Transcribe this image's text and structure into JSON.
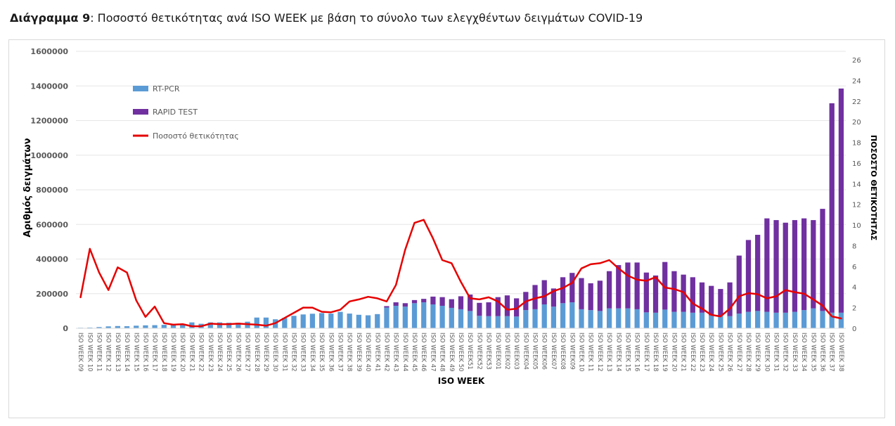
{
  "caption": {
    "label": "Διάγραμμα 9",
    "text": ": Ποσοστό θετικότητας ανά ISO WEEK με βάση το σύνολο των ελεγχθέντων δειγμάτων COVID-19"
  },
  "colors": {
    "rtpcr": "#5b9bd5",
    "rapid": "#7030a0",
    "line": "#e60000",
    "axis_text": "#595959",
    "grid": "#e6e6e6"
  },
  "chart_data": {
    "type": "bar",
    "xlabel": "ISO WEEK",
    "ylabel": "Αριθμός δειγμάτων",
    "y2label": "ΠΟΣΟΣΤΟ ΘΕΤΙΚΟΤΗΤΑΣ",
    "ylim": [
      0,
      1600000
    ],
    "y_ticks": [
      "0",
      "200000",
      "400000",
      "600000",
      "800000",
      "1000000",
      "1200000",
      "1400000",
      "1600000"
    ],
    "y2lim": [
      0,
      26
    ],
    "y2_ticks": [
      "0",
      "2",
      "4",
      "6",
      "8",
      "10",
      "12",
      "14",
      "16",
      "18",
      "20",
      "22",
      "24",
      "26"
    ],
    "legend_position": "top-left",
    "categories": [
      "ISO WEEK 09",
      "ISO WEEK 10",
      "ISO WEEK 11",
      "ISO WEEK 12",
      "ISO WEEK 13",
      "ISO WEEK 14",
      "ISO WEEK 15",
      "ISO WEEK 16",
      "ISO WEEK 17",
      "ISO WEEK 18",
      "ISO WEEK 19",
      "ISO WEEK 20",
      "ISO WEEK 21",
      "ISO WEEK 22",
      "ISO WEEK 23",
      "ISO WEEK 24",
      "ISO WEEK 25",
      "ISO WEEK 26",
      "ISO WEEK 27",
      "ISO WEEK 28",
      "ISO WEEK 29",
      "ISO WEEK 30",
      "ISO WEEK 31",
      "ISO WEEK 32",
      "ISO WEEK 33",
      "ISO WEEK 34",
      "ISO WEEK 35",
      "ISO WEEK 36",
      "ISO WEEK 37",
      "ISO WEEK 38",
      "ISO WEEK 39",
      "ISO WEEK 40",
      "ISO WEEK 41",
      "ISO WEEK 42",
      "ISO WEEK 43",
      "ISO WEEK 44",
      "ISO WEEK 45",
      "ISO WEEK 46",
      "ISO WEEK 47",
      "ISO WEEK 48",
      "ISO WEEK 49",
      "ISO WEEK 50",
      "ISO WEEK51",
      "ISO WEEK52",
      "ISO WEEK53",
      "ISO WEEK01",
      "ISO WEEK02",
      "ISO WEEK03",
      "ISO WEEK04",
      "ISO WEEK05",
      "ISO WEEK06",
      "ISO WEEK07",
      "ISO WEEK08",
      "ISO WEEK09",
      "ISO WEEK 10",
      "ISO WEEK 11",
      "ISO WEEK 12",
      "ISO WEEK 13",
      "ISO WEEK 14",
      "ISO WEEK 15",
      "ISO WEEK 16",
      "ISO WEEK 17",
      "ISO WEEK 18",
      "ISO WEEK 19",
      "ISO WEEK 20",
      "ISO WEEK 21",
      "ISO WEEK 22",
      "ISO WEEK 23",
      "ISO WEEK 24",
      "ISO WEEK 25",
      "ISO WEEK 26",
      "ISO WEEK 27",
      "ISO WEEK 28",
      "ISO WEEK 29",
      "ISO WEEK 30",
      "ISO WEEK 31",
      "ISO WEEK 32",
      "ISO WEEK 33",
      "ISO WEEK 34",
      "ISO WEEK 35",
      "ISO WEEK 36",
      "ISO WEEK 37",
      "ISO WEEK 38"
    ],
    "series": [
      {
        "name": "RT-PCR",
        "kind": "bar",
        "axis": "left",
        "values": [
          3000,
          4000,
          7000,
          11000,
          13000,
          12000,
          15000,
          17000,
          18000,
          20000,
          22000,
          24000,
          34000,
          26000,
          34000,
          34000,
          32000,
          32000,
          38000,
          62000,
          62000,
          52000,
          60000,
          72000,
          80000,
          84000,
          88000,
          85000,
          95000,
          85000,
          78000,
          75000,
          82000,
          120000,
          130000,
          125000,
          145000,
          150000,
          138000,
          130000,
          118000,
          110000,
          100000,
          72000,
          70000,
          70000,
          70000,
          68000,
          105000,
          110000,
          138000,
          125000,
          145000,
          150000,
          110000,
          105000,
          100000,
          115000,
          115000,
          115000,
          110000,
          92000,
          90000,
          108000,
          95000,
          95000,
          90000,
          90000,
          75000,
          72000,
          70000,
          85000,
          95000,
          100000,
          95000,
          90000,
          90000,
          95000,
          105000,
          115000,
          100000,
          90000,
          90000
        ]
      },
      {
        "name": "RAPID TEST",
        "kind": "bar",
        "axis": "left",
        "values": [
          0,
          0,
          0,
          0,
          0,
          0,
          0,
          0,
          0,
          0,
          0,
          0,
          0,
          0,
          0,
          0,
          0,
          0,
          0,
          0,
          0,
          0,
          0,
          0,
          0,
          0,
          0,
          0,
          0,
          0,
          0,
          0,
          0,
          8000,
          20000,
          20000,
          18000,
          20000,
          45000,
          50000,
          50000,
          75000,
          95000,
          75000,
          80000,
          110000,
          120000,
          105000,
          105000,
          140000,
          140000,
          105000,
          150000,
          170000,
          180000,
          155000,
          175000,
          215000,
          250000,
          265000,
          270000,
          230000,
          215000,
          275000,
          235000,
          215000,
          205000,
          175000,
          170000,
          155000,
          195000,
          335000,
          415000,
          440000,
          540000,
          535000,
          520000,
          530000,
          530000,
          510000,
          590000,
          1210000,
          1295000
        ]
      },
      {
        "name": "Ποσοστό θετικότητας",
        "kind": "line",
        "axis": "right",
        "values": [
          3.0,
          7.7,
          5.4,
          3.7,
          5.9,
          5.4,
          2.7,
          1.1,
          2.1,
          0.5,
          0.35,
          0.4,
          0.2,
          0.2,
          0.45,
          0.4,
          0.4,
          0.45,
          0.4,
          0.35,
          0.25,
          0.5,
          1.0,
          1.5,
          2.0,
          2.0,
          1.6,
          1.55,
          1.8,
          2.6,
          2.8,
          3.05,
          2.9,
          2.6,
          4.2,
          7.6,
          10.2,
          10.5,
          8.7,
          6.6,
          6.3,
          4.5,
          2.9,
          2.8,
          3.0,
          2.6,
          1.8,
          1.9,
          2.6,
          2.9,
          3.1,
          3.6,
          3.9,
          4.4,
          5.8,
          6.2,
          6.3,
          6.6,
          5.8,
          5.1,
          4.7,
          4.6,
          4.95,
          3.95,
          3.8,
          3.5,
          2.4,
          1.9,
          1.3,
          1.15,
          1.9,
          3.1,
          3.4,
          3.3,
          2.9,
          3.1,
          3.7,
          3.5,
          3.35,
          2.8,
          2.2,
          1.15,
          0.95
        ]
      }
    ]
  }
}
